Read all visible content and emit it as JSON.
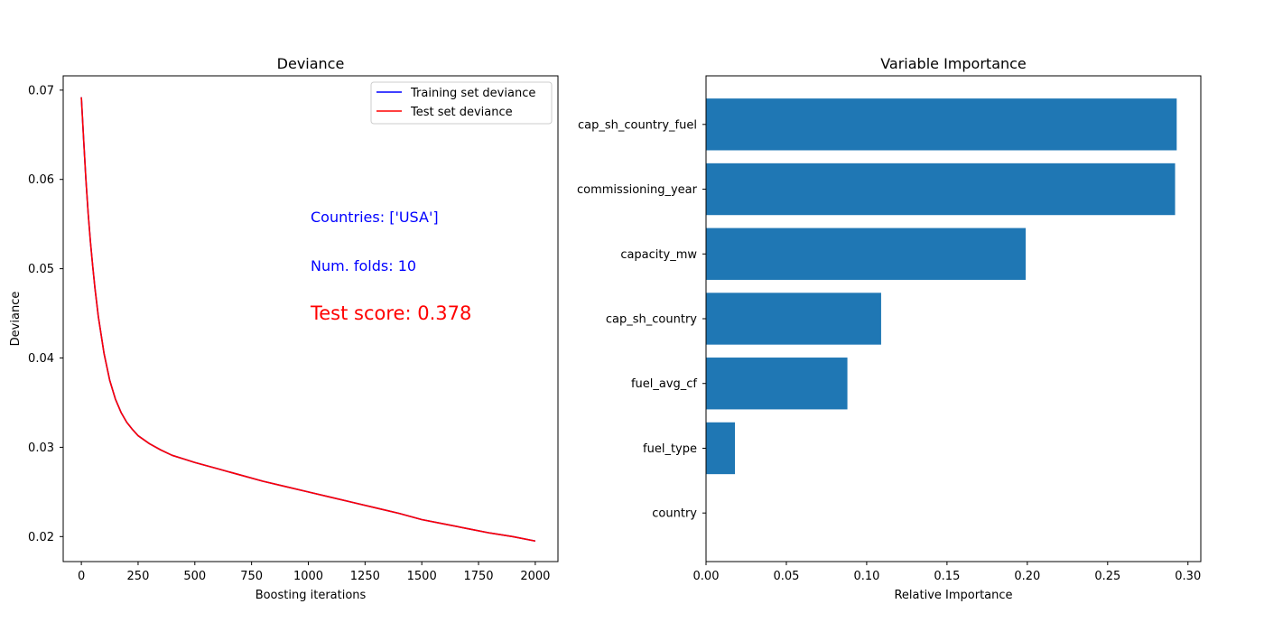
{
  "chart_data": [
    {
      "type": "line",
      "title": "Deviance",
      "xlabel": "Boosting iterations",
      "ylabel": "Deviance",
      "xlim": [
        -80,
        2100
      ],
      "ylim": [
        0.0172,
        0.0716
      ],
      "xticks": [
        0,
        250,
        500,
        750,
        1000,
        1250,
        1500,
        1750,
        2000
      ],
      "xtick_labels": [
        "0",
        "250",
        "500",
        "750",
        "1000",
        "1250",
        "1500",
        "1750",
        "2000"
      ],
      "yticks": [
        0.02,
        0.03,
        0.04,
        0.05,
        0.06,
        0.07
      ],
      "ytick_labels": [
        "0.02",
        "0.03",
        "0.04",
        "0.05",
        "0.06",
        "0.07"
      ],
      "grid": false,
      "legend": "top-right",
      "series": [
        {
          "name": "Training set deviance",
          "color": "#0000ff",
          "x": [
            0,
            10,
            20,
            30,
            40,
            50,
            60,
            75,
            100,
            125,
            150,
            175,
            200,
            225,
            250,
            300,
            350,
            400,
            450,
            500,
            600,
            700,
            800,
            900,
            1000,
            1100,
            1200,
            1300,
            1400,
            1500,
            1600,
            1700,
            1800,
            1900,
            2000
          ],
          "y": [
            0.0692,
            0.0645,
            0.06,
            0.0562,
            0.053,
            0.0503,
            0.0478,
            0.0446,
            0.0405,
            0.0375,
            0.0354,
            0.0339,
            0.0328,
            0.032,
            0.0313,
            0.0304,
            0.0297,
            0.0291,
            0.0287,
            0.0283,
            0.0276,
            0.0269,
            0.0262,
            0.0256,
            0.025,
            0.0244,
            0.0238,
            0.0232,
            0.0226,
            0.0219,
            0.0214,
            0.0209,
            0.0204,
            0.02,
            0.0195
          ]
        },
        {
          "name": "Test set deviance",
          "color": "#ff0000",
          "x": [
            0,
            10,
            20,
            30,
            40,
            50,
            60,
            75,
            100,
            125,
            150,
            175,
            200,
            225,
            250,
            300,
            350,
            400,
            450,
            500,
            600,
            700,
            800,
            900,
            1000,
            1100,
            1200,
            1300,
            1400,
            1500,
            1600,
            1700,
            1800,
            1900,
            2000
          ],
          "y": [
            0.0692,
            0.0645,
            0.06,
            0.0562,
            0.053,
            0.0503,
            0.0478,
            0.0446,
            0.0405,
            0.0375,
            0.0354,
            0.0339,
            0.0328,
            0.032,
            0.0313,
            0.0304,
            0.0297,
            0.0291,
            0.0287,
            0.0283,
            0.0276,
            0.0269,
            0.0262,
            0.0256,
            0.025,
            0.0244,
            0.0238,
            0.0232,
            0.0226,
            0.0219,
            0.0214,
            0.0209,
            0.0204,
            0.02,
            0.0195
          ]
        }
      ],
      "annotations": [
        {
          "text": "Countries: ['USA']",
          "color": "#0000ff",
          "size": "medium"
        },
        {
          "text": "Num. folds: 10",
          "color": "#0000ff",
          "size": "medium"
        },
        {
          "text": "Test score: 0.378",
          "color": "#ff0000",
          "size": "large"
        }
      ]
    },
    {
      "type": "bar",
      "orientation": "horizontal",
      "title": "Variable Importance",
      "xlabel": "Relative Importance",
      "ylabel": "",
      "xlim": [
        0,
        0.308
      ],
      "xticks": [
        0,
        0.05,
        0.1,
        0.15,
        0.2,
        0.25,
        0.3
      ],
      "xtick_labels": [
        "0.00",
        "0.05",
        "0.10",
        "0.15",
        "0.20",
        "0.25",
        "0.30"
      ],
      "grid": false,
      "bar_color": "#1f77b4",
      "categories": [
        "cap_sh_country_fuel",
        "commissioning_year",
        "capacity_mw",
        "cap_sh_country",
        "fuel_avg_cf",
        "fuel_type",
        "country"
      ],
      "values": [
        0.293,
        0.292,
        0.199,
        0.109,
        0.088,
        0.018,
        0.0
      ]
    }
  ]
}
